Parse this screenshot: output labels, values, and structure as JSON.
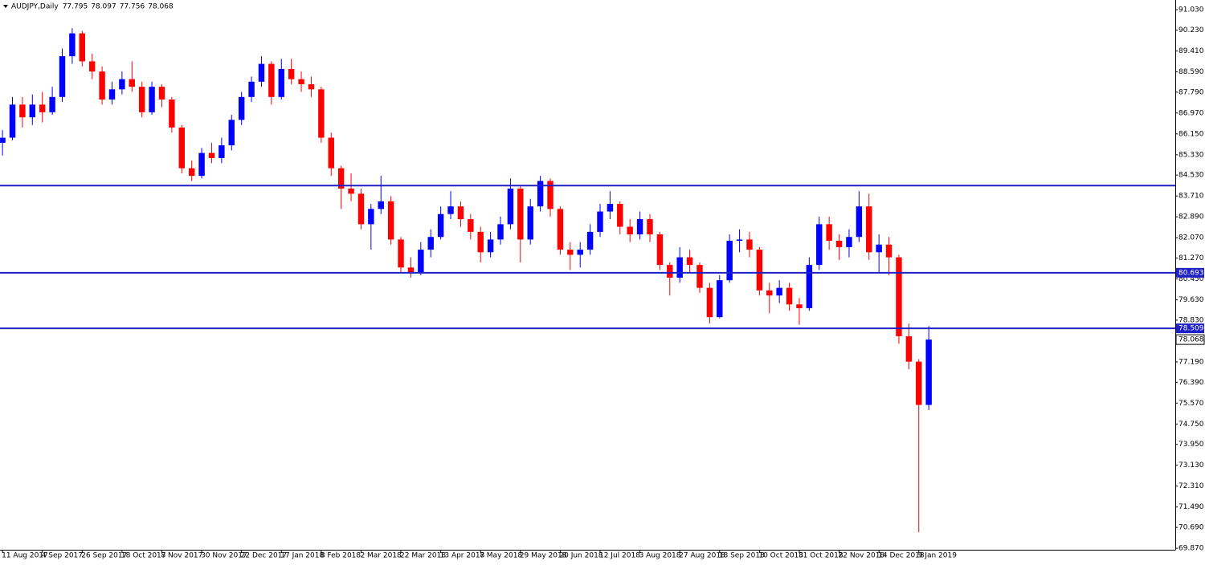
{
  "chart_data": {
    "type": "candlestick",
    "title": "AUDJPY,Daily",
    "last_ohlc": [
      77.795,
      78.097,
      77.756,
      78.068
    ],
    "up_color": "#0000ff",
    "down_color": "#ff0000",
    "level_color": "#1f1fc8",
    "hlines": [
      84.12
    ],
    "labeled_hlines": [
      80.693,
      78.509
    ],
    "last_price": 78.068,
    "ylim": [
      69.81,
      91.41
    ],
    "yticks": [
      {
        "value": 91.03,
        "label": "91.030"
      },
      {
        "value": 90.23,
        "label": "90.230"
      },
      {
        "value": 89.41,
        "label": "89.410"
      },
      {
        "value": 88.59,
        "label": "88.590"
      },
      {
        "value": 87.79,
        "label": "87.790"
      },
      {
        "value": 86.97,
        "label": "86.970"
      },
      {
        "value": 86.15,
        "label": "86.150"
      },
      {
        "value": 85.33,
        "label": "85.330"
      },
      {
        "value": 84.53,
        "label": "84.530"
      },
      {
        "value": 83.71,
        "label": "83.710"
      },
      {
        "value": 82.89,
        "label": "82.890"
      },
      {
        "value": 82.07,
        "label": "82.070"
      },
      {
        "value": 81.27,
        "label": "81.270"
      },
      {
        "value": 80.45,
        "label": "80.450"
      },
      {
        "value": 79.63,
        "label": "79.630"
      },
      {
        "value": 78.83,
        "label": "78.830"
      },
      {
        "value": 77.19,
        "label": "77.190"
      },
      {
        "value": 76.39,
        "label": "76.390"
      },
      {
        "value": 75.57,
        "label": "75.570"
      },
      {
        "value": 74.75,
        "label": "74.750"
      },
      {
        "value": 73.95,
        "label": "73.950"
      },
      {
        "value": 73.13,
        "label": "73.130"
      },
      {
        "value": 72.31,
        "label": "72.310"
      },
      {
        "value": 71.49,
        "label": "71.490"
      },
      {
        "value": 70.69,
        "label": "70.690"
      },
      {
        "value": 69.87,
        "label": "69.870"
      }
    ],
    "xlim": [
      -0.25,
      117.75
    ],
    "xticks": [
      {
        "value": 0,
        "label": "11 Aug 2017"
      },
      {
        "value": 4,
        "label": "4 Sep 2017"
      },
      {
        "value": 8,
        "label": "26 Sep 2017"
      },
      {
        "value": 12,
        "label": "18 Oct 2017"
      },
      {
        "value": 16,
        "label": "8 Nov 2017"
      },
      {
        "value": 20,
        "label": "30 Nov 2017"
      },
      {
        "value": 24,
        "label": "22 Dec 2017"
      },
      {
        "value": 28,
        "label": "17 Jan 2018"
      },
      {
        "value": 32,
        "label": "8 Feb 2018"
      },
      {
        "value": 36,
        "label": "2 Mar 2018"
      },
      {
        "value": 40,
        "label": "22 Mar 2018"
      },
      {
        "value": 44,
        "label": "13 Apr 2018"
      },
      {
        "value": 48,
        "label": "7 May 2018"
      },
      {
        "value": 52,
        "label": "29 May 2018"
      },
      {
        "value": 56,
        "label": "20 Jun 2018"
      },
      {
        "value": 60,
        "label": "12 Jul 2018"
      },
      {
        "value": 64,
        "label": "3 Aug 2018"
      },
      {
        "value": 68,
        "label": "27 Aug 2018"
      },
      {
        "value": 72,
        "label": "18 Sep 2018"
      },
      {
        "value": 76,
        "label": "10 Oct 2018"
      },
      {
        "value": 80,
        "label": "31 Oct 2018"
      },
      {
        "value": 84,
        "label": "22 Nov 2018"
      },
      {
        "value": 88,
        "label": "14 Dec 2018"
      },
      {
        "value": 92,
        "label": "9 Jan 2019"
      }
    ],
    "candles": [
      [
        85.8,
        86.3,
        85.3,
        86.0
      ],
      [
        86.0,
        87.6,
        85.9,
        87.3
      ],
      [
        87.3,
        87.6,
        86.4,
        86.8
      ],
      [
        86.8,
        87.7,
        86.5,
        87.3
      ],
      [
        87.3,
        87.8,
        86.6,
        87.0
      ],
      [
        87.0,
        88.0,
        86.9,
        87.6
      ],
      [
        87.6,
        89.5,
        87.4,
        89.2
      ],
      [
        89.2,
        90.3,
        88.9,
        90.1
      ],
      [
        90.1,
        90.2,
        88.8,
        89.0
      ],
      [
        89.0,
        89.3,
        88.3,
        88.6
      ],
      [
        88.6,
        88.8,
        87.3,
        87.5
      ],
      [
        87.5,
        88.2,
        87.3,
        87.9
      ],
      [
        87.9,
        88.6,
        87.7,
        88.3
      ],
      [
        88.3,
        89.0,
        87.8,
        88.0
      ],
      [
        88.0,
        88.2,
        86.8,
        87.0
      ],
      [
        87.0,
        88.2,
        86.9,
        88.0
      ],
      [
        88.0,
        88.1,
        87.2,
        87.5
      ],
      [
        87.5,
        87.6,
        86.2,
        86.4
      ],
      [
        86.4,
        86.5,
        84.6,
        84.8
      ],
      [
        84.8,
        85.1,
        84.3,
        84.5
      ],
      [
        84.5,
        85.6,
        84.4,
        85.4
      ],
      [
        85.4,
        85.8,
        85.0,
        85.2
      ],
      [
        85.2,
        86.0,
        85.0,
        85.7
      ],
      [
        85.7,
        86.9,
        85.5,
        86.7
      ],
      [
        86.7,
        87.8,
        86.5,
        87.6
      ],
      [
        87.6,
        88.4,
        87.4,
        88.2
      ],
      [
        88.2,
        89.2,
        88.0,
        88.9
      ],
      [
        88.9,
        89.0,
        87.3,
        87.6
      ],
      [
        87.6,
        89.1,
        87.5,
        88.7
      ],
      [
        88.7,
        89.1,
        88.1,
        88.3
      ],
      [
        88.3,
        88.6,
        87.8,
        88.1
      ],
      [
        88.1,
        88.4,
        87.6,
        87.9
      ],
      [
        87.9,
        88.0,
        85.8,
        86.0
      ],
      [
        86.0,
        86.2,
        84.5,
        84.8
      ],
      [
        84.8,
        84.9,
        83.2,
        84.0
      ],
      [
        84.0,
        84.6,
        83.5,
        83.8
      ],
      [
        83.8,
        84.0,
        82.4,
        82.6
      ],
      [
        82.6,
        83.4,
        81.6,
        83.2
      ],
      [
        83.2,
        84.5,
        83.0,
        83.5
      ],
      [
        83.5,
        83.7,
        81.8,
        82.0
      ],
      [
        82.0,
        82.1,
        80.7,
        80.9
      ],
      [
        80.9,
        81.3,
        80.5,
        80.7
      ],
      [
        80.7,
        81.9,
        80.6,
        81.6
      ],
      [
        81.6,
        82.4,
        81.3,
        82.1
      ],
      [
        82.1,
        83.3,
        82.0,
        83.0
      ],
      [
        83.0,
        83.9,
        82.8,
        83.3
      ],
      [
        83.3,
        83.5,
        82.5,
        82.8
      ],
      [
        82.8,
        83.0,
        82.0,
        82.3
      ],
      [
        82.3,
        82.5,
        81.1,
        81.5
      ],
      [
        81.5,
        82.3,
        81.3,
        82.0
      ],
      [
        82.0,
        82.9,
        81.8,
        82.6
      ],
      [
        82.6,
        84.4,
        82.4,
        84.0
      ],
      [
        84.0,
        84.1,
        81.1,
        82.0
      ],
      [
        82.0,
        83.6,
        81.8,
        83.3
      ],
      [
        83.3,
        84.5,
        83.1,
        84.3
      ],
      [
        84.3,
        84.4,
        82.9,
        83.2
      ],
      [
        83.2,
        83.3,
        81.4,
        81.6
      ],
      [
        81.6,
        81.9,
        80.8,
        81.4
      ],
      [
        81.4,
        81.9,
        80.9,
        81.6
      ],
      [
        81.6,
        82.6,
        81.4,
        82.3
      ],
      [
        82.3,
        83.4,
        82.1,
        83.1
      ],
      [
        83.1,
        83.9,
        82.8,
        83.4
      ],
      [
        83.4,
        83.5,
        82.2,
        82.5
      ],
      [
        82.5,
        82.8,
        81.9,
        82.2
      ],
      [
        82.2,
        83.1,
        82.0,
        82.8
      ],
      [
        82.8,
        83.0,
        81.9,
        82.2
      ],
      [
        82.2,
        82.3,
        80.8,
        81.0
      ],
      [
        81.0,
        81.1,
        79.8,
        80.5
      ],
      [
        80.5,
        81.7,
        80.3,
        81.3
      ],
      [
        81.3,
        81.6,
        80.7,
        81.0
      ],
      [
        81.0,
        81.1,
        79.9,
        80.1
      ],
      [
        80.1,
        80.3,
        78.7,
        78.95
      ],
      [
        78.95,
        80.6,
        78.9,
        80.4
      ],
      [
        80.4,
        82.2,
        80.3,
        81.95
      ],
      [
        81.95,
        82.4,
        81.5,
        82.0
      ],
      [
        82.0,
        82.3,
        81.3,
        81.6
      ],
      [
        81.6,
        81.7,
        79.8,
        80.0
      ],
      [
        80.0,
        80.3,
        79.1,
        79.8
      ],
      [
        79.8,
        80.4,
        79.5,
        80.1
      ],
      [
        80.1,
        80.3,
        79.2,
        79.45
      ],
      [
        79.45,
        79.7,
        78.65,
        79.3
      ],
      [
        79.3,
        81.3,
        79.2,
        81.0
      ],
      [
        81.0,
        82.9,
        80.8,
        82.6
      ],
      [
        82.6,
        82.9,
        81.6,
        81.95
      ],
      [
        81.95,
        82.2,
        81.2,
        81.7
      ],
      [
        81.7,
        82.4,
        81.3,
        82.1
      ],
      [
        82.1,
        83.9,
        81.9,
        83.3
      ],
      [
        83.3,
        83.8,
        81.2,
        81.5
      ],
      [
        81.5,
        82.2,
        80.7,
        81.8
      ],
      [
        81.8,
        82.1,
        80.6,
        81.3
      ],
      [
        81.3,
        81.4,
        77.9,
        78.2
      ],
      [
        78.2,
        78.7,
        76.9,
        77.2
      ],
      [
        77.2,
        77.3,
        70.5,
        75.5
      ],
      [
        75.5,
        78.6,
        75.3,
        78.068
      ]
    ]
  }
}
